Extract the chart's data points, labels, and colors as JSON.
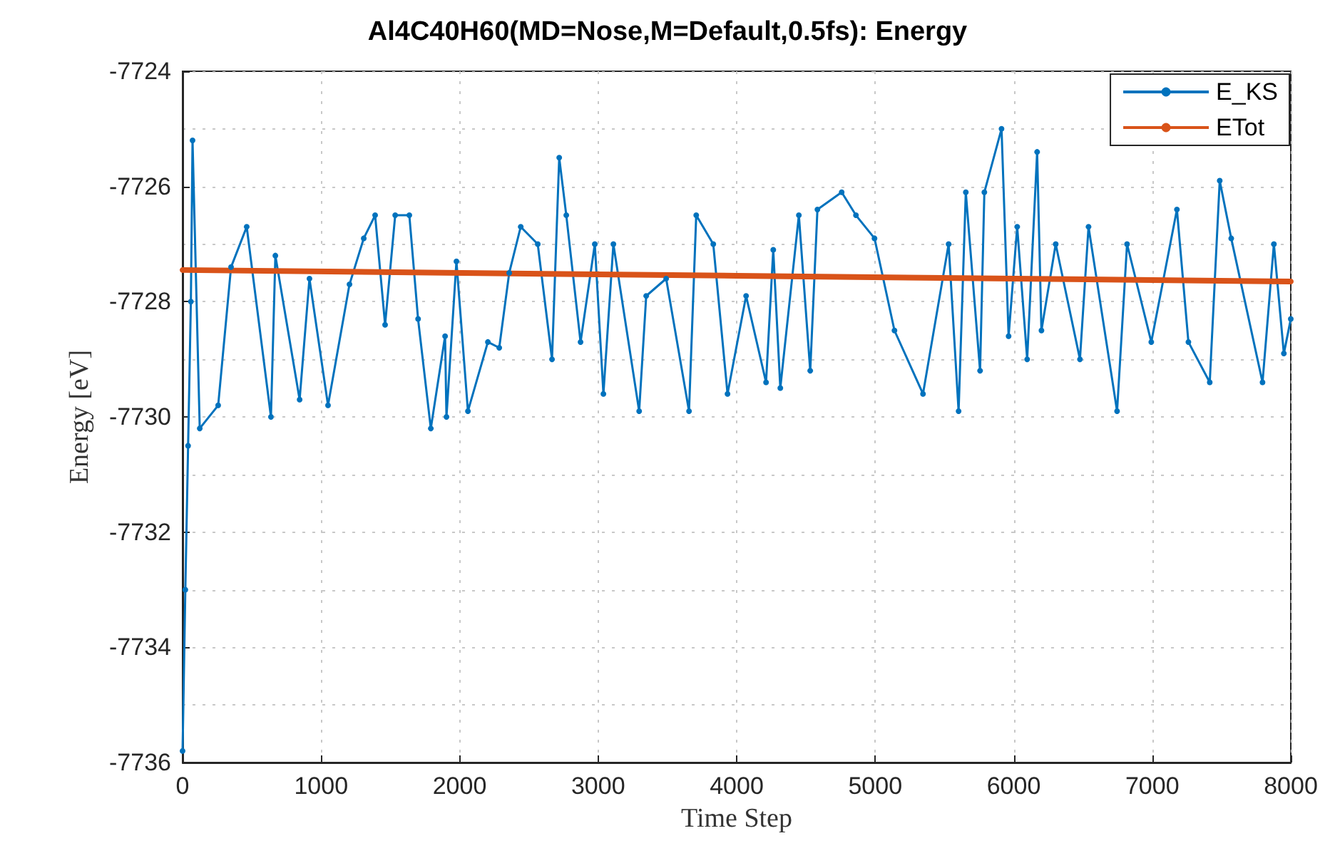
{
  "chart_data": {
    "type": "line",
    "title": "Al4C40H60(MD=Nose,M=Default,0.5fs): Energy",
    "xlabel": "Time Step",
    "ylabel": "Energy [eV]",
    "xlim": [
      0,
      8000
    ],
    "xticks": [
      0,
      1000,
      2000,
      3000,
      4000,
      5000,
      6000,
      7000,
      8000
    ],
    "ylim": [
      -7736,
      -7724
    ],
    "yticks": [
      -7736,
      -7734,
      -7732,
      -7730,
      -7728,
      -7726,
      -7724
    ],
    "grid": true,
    "legend": "top right",
    "marker": "circle",
    "line_style": "solid",
    "series": [
      {
        "name": "E_KS",
        "color": "#0072bd",
        "x": [
          0,
          20,
          40,
          60,
          72,
          124,
          257,
          350,
          463,
          638,
          670,
          845,
          916,
          1050,
          1205,
          1308,
          1390,
          1462,
          1535,
          1637,
          1700,
          1792,
          1895,
          1905,
          1977,
          2060,
          2204,
          2286,
          2358,
          2441,
          2564,
          2667,
          2719,
          2770,
          2873,
          2976,
          3038,
          3110,
          3296,
          3347,
          3491,
          3656,
          3708,
          3831,
          3934,
          4068,
          4212,
          4264,
          4315,
          4449,
          4531,
          4583,
          4758,
          4861,
          4995,
          5139,
          5345,
          5530,
          5602,
          5654,
          5757,
          5788,
          5912,
          5963,
          6025,
          6097,
          6169,
          6200,
          6303,
          6478,
          6540,
          6746,
          6818,
          6993,
          7178,
          7261,
          7415,
          7487,
          7570,
          7796,
          7878,
          7950,
          8000
        ],
        "values": [
          -7735.8,
          -7733,
          -7730.5,
          -7728,
          -7725.2,
          -7730.2,
          -7729.8,
          -7727.4,
          -7726.7,
          -7730.0,
          -7727.2,
          -7729.7,
          -7727.6,
          -7729.8,
          -7727.7,
          -7726.9,
          -7726.5,
          -7728.4,
          -7726.5,
          -7726.5,
          -7728.3,
          -7730.2,
          -7728.6,
          -7730.0,
          -7727.3,
          -7729.9,
          -7728.7,
          -7728.8,
          -7727.5,
          -7726.7,
          -7727.0,
          -7729.0,
          -7725.5,
          -7726.5,
          -7728.7,
          -7727.0,
          -7729.6,
          -7727.0,
          -7729.9,
          -7727.9,
          -7727.6,
          -7729.9,
          -7726.5,
          -7727.0,
          -7729.6,
          -7727.9,
          -7729.4,
          -7727.1,
          -7729.5,
          -7726.5,
          -7729.2,
          -7726.4,
          -7726.1,
          -7726.5,
          -7726.9,
          -7728.5,
          -7729.6,
          -7727.0,
          -7729.9,
          -7726.1,
          -7729.2,
          -7726.1,
          -7725.0,
          -7728.6,
          -7726.7,
          -7729.0,
          -7725.4,
          -7728.5,
          -7727.0,
          -7729.0,
          -7726.7,
          -7729.9,
          -7727.0,
          -7728.7,
          -7726.4,
          -7728.7,
          -7729.4,
          -7725.9,
          -7726.9,
          -7729.4,
          -7727.0,
          -7728.9,
          -7728.3
        ]
      },
      {
        "name": "ETot",
        "color": "#d95319",
        "x": [
          0,
          4000,
          8000
        ],
        "values": [
          -7727.45,
          -7727.55,
          -7727.65
        ]
      }
    ]
  }
}
